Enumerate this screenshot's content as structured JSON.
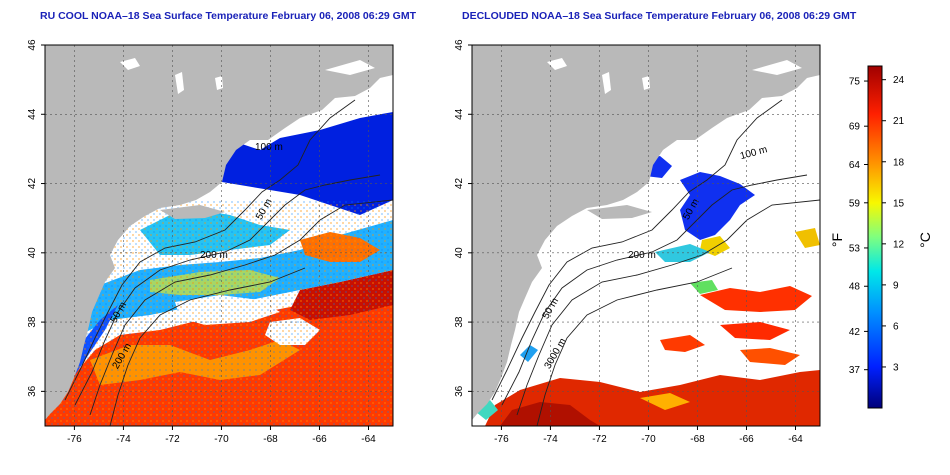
{
  "panels": [
    {
      "id": "left",
      "title": "RU COOL NOAA–18 Sea Surface Temperature February 06, 2008 06:29 GMT",
      "contour_labels": [
        "100 m",
        "50 m",
        "200 m",
        "50 m",
        "200 m"
      ]
    },
    {
      "id": "right",
      "title": "DECLOUDED NOAA–18 Sea Surface Temperature February 06, 2008 06:29 GMT",
      "contour_labels": [
        "100 m",
        "50 m",
        "200 m",
        "50 m",
        "3000 m"
      ]
    }
  ],
  "axes": {
    "x_ticks": [
      "-76",
      "-74",
      "-72",
      "-70",
      "-68",
      "-66",
      "-64"
    ],
    "x_values": [
      -76,
      -74,
      -72,
      -70,
      -68,
      -66,
      -64
    ],
    "x_range": [
      -77.2,
      -63
    ],
    "y_ticks": [
      "36",
      "38",
      "40",
      "42",
      "44",
      "46"
    ],
    "y_values": [
      36,
      38,
      40,
      42,
      44,
      46
    ],
    "y_range": [
      35,
      46
    ],
    "grid": "dashed"
  },
  "colorbar": {
    "fahrenheit_label": "°F",
    "celsius_label": "°C",
    "fahrenheit_ticks": [
      "75",
      "69",
      "64",
      "59",
      "53",
      "48",
      "42",
      "37"
    ],
    "celsius_ticks": [
      "24",
      "21",
      "18",
      "15",
      "12",
      "9",
      "6",
      "3"
    ],
    "celsius_range": [
      0,
      25
    ],
    "fahrenheit_celsius_values": [
      23.9,
      20.6,
      17.8,
      15,
      11.7,
      8.9,
      5.6,
      2.8
    ],
    "celsius_values": [
      24,
      21,
      18,
      15,
      12,
      9,
      6,
      3
    ]
  },
  "colors": {
    "land": "#b9b9b9",
    "ocean_blank": "#ffffff",
    "title": "#1a22b8",
    "scale": [
      "#00007a",
      "#0020ff",
      "#0090ff",
      "#00e8e8",
      "#7fff7f",
      "#f8f800",
      "#ff9000",
      "#ff2000",
      "#a00000"
    ]
  }
}
